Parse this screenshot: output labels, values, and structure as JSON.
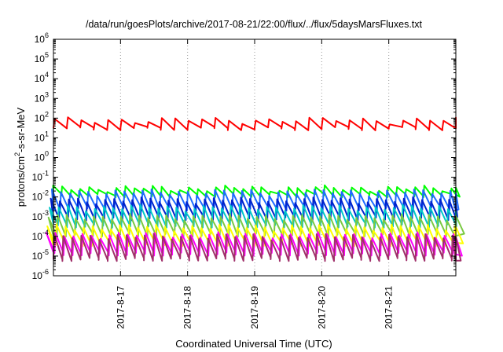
{
  "chart_data": {
    "type": "line",
    "title": "/data/run/goesPlots/archive/2017-08-21/22:00/flux/../flux/5daysMarsFluxes.txt",
    "xlabel": "Coordinated Universal Time (UTC)",
    "ylabel": "protons/cm2-s-sr-MeV",
    "ylabel_parts": {
      "before": "protons/cm",
      "sup": "2",
      "after": "-s-sr-MeV"
    },
    "y_scale": "log",
    "ylim": [
      1e-06,
      1000000.0
    ],
    "y_ticks": [
      {
        "exp": "-6"
      },
      {
        "exp": "-5"
      },
      {
        "exp": "-4"
      },
      {
        "exp": "-3"
      },
      {
        "exp": "-2"
      },
      {
        "exp": "-1"
      },
      {
        "exp": "0"
      },
      {
        "exp": "1"
      },
      {
        "exp": "2"
      },
      {
        "exp": "3"
      },
      {
        "exp": "4"
      },
      {
        "exp": "5"
      },
      {
        "exp": "6"
      }
    ],
    "y_tick_base": "10",
    "x_range_days": [
      0,
      6
    ],
    "x_ticks": [
      {
        "label": "2017-8-17",
        "day": 1
      },
      {
        "label": "2017-8-18",
        "day": 2
      },
      {
        "label": "2017-8-19",
        "day": 3
      },
      {
        "label": "2017-8-20",
        "day": 4
      },
      {
        "label": "2017-8-21",
        "day": 5
      }
    ],
    "grid": true,
    "legend": "none",
    "series": [
      {
        "color": "#ff0000",
        "values_approx": "10 to 130, sawtooth",
        "high": 80,
        "low": 30,
        "period_days": 0.2
      },
      {
        "color": "#00ff00",
        "values_approx": "1e-2 to 3e-2",
        "high": 0.028,
        "low": 0.012,
        "period_days": 0.135
      },
      {
        "color": "#1e6bff",
        "values_approx": "2e-3 to 2e-2",
        "high": 0.018,
        "low": 0.0025,
        "period_days": 0.135
      },
      {
        "color": "#0022cc",
        "values_approx": "7e-4 to 7e-3",
        "high": 0.007,
        "low": 0.0008,
        "period_days": 0.135
      },
      {
        "color": "#00c8c8",
        "values_approx": "3e-4 to 3e-3",
        "high": 0.003,
        "low": 0.00035,
        "period_days": 0.135
      },
      {
        "color": "#7ac943",
        "values_approx": "1e-4 to 1e-3",
        "high": 0.001,
        "low": 0.00012,
        "period_days": 0.135
      },
      {
        "color": "#ffff00",
        "values_approx": "3e-5 to 3e-4",
        "high": 0.0003,
        "low": 4e-05,
        "period_days": 0.135
      },
      {
        "color": "#ff00ff",
        "values_approx": "1e-5 to 1e-4",
        "high": 0.00012,
        "low": 1.3e-05,
        "period_days": 0.135
      },
      {
        "color": "#a0306a",
        "values_approx": "7e-6 to 1e-4",
        "high": 0.0001,
        "low": 7e-06,
        "period_days": 0.135
      }
    ]
  }
}
